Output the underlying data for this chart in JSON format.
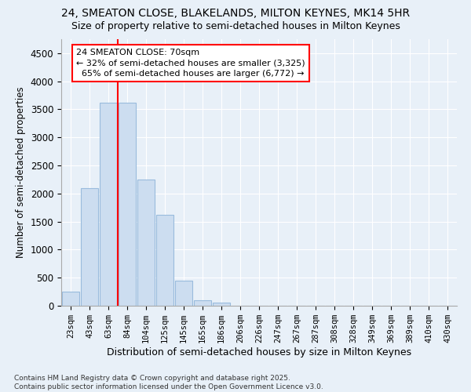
{
  "title_line1": "24, SMEATON CLOSE, BLAKELANDS, MILTON KEYNES, MK14 5HR",
  "title_line2": "Size of property relative to semi-detached houses in Milton Keynes",
  "xlabel": "Distribution of semi-detached houses by size in Milton Keynes",
  "ylabel": "Number of semi-detached properties",
  "categories": [
    "23sqm",
    "43sqm",
    "63sqm",
    "84sqm",
    "104sqm",
    "125sqm",
    "145sqm",
    "165sqm",
    "186sqm",
    "206sqm",
    "226sqm",
    "247sqm",
    "267sqm",
    "287sqm",
    "308sqm",
    "328sqm",
    "349sqm",
    "369sqm",
    "389sqm",
    "410sqm",
    "430sqm"
  ],
  "values": [
    250,
    2100,
    3625,
    3625,
    2250,
    1625,
    450,
    100,
    60,
    0,
    0,
    0,
    0,
    0,
    0,
    0,
    0,
    0,
    0,
    0,
    0
  ],
  "bar_color": "#ccddf0",
  "bar_edge_color": "#99bbdd",
  "red_line_index": 2,
  "annotation_label": "24 SMEATON CLOSE: 70sqm",
  "pct_smaller": "32%",
  "count_smaller": "3,325",
  "pct_larger": "65%",
  "count_larger": "6,772",
  "ylim": [
    0,
    4750
  ],
  "yticks": [
    0,
    500,
    1000,
    1500,
    2000,
    2500,
    3000,
    3500,
    4000,
    4500
  ],
  "background_color": "#e8f0f8",
  "plot_bg_color": "#e8f0f8",
  "footer_line1": "Contains HM Land Registry data © Crown copyright and database right 2025.",
  "footer_line2": "Contains public sector information licensed under the Open Government Licence v3.0."
}
